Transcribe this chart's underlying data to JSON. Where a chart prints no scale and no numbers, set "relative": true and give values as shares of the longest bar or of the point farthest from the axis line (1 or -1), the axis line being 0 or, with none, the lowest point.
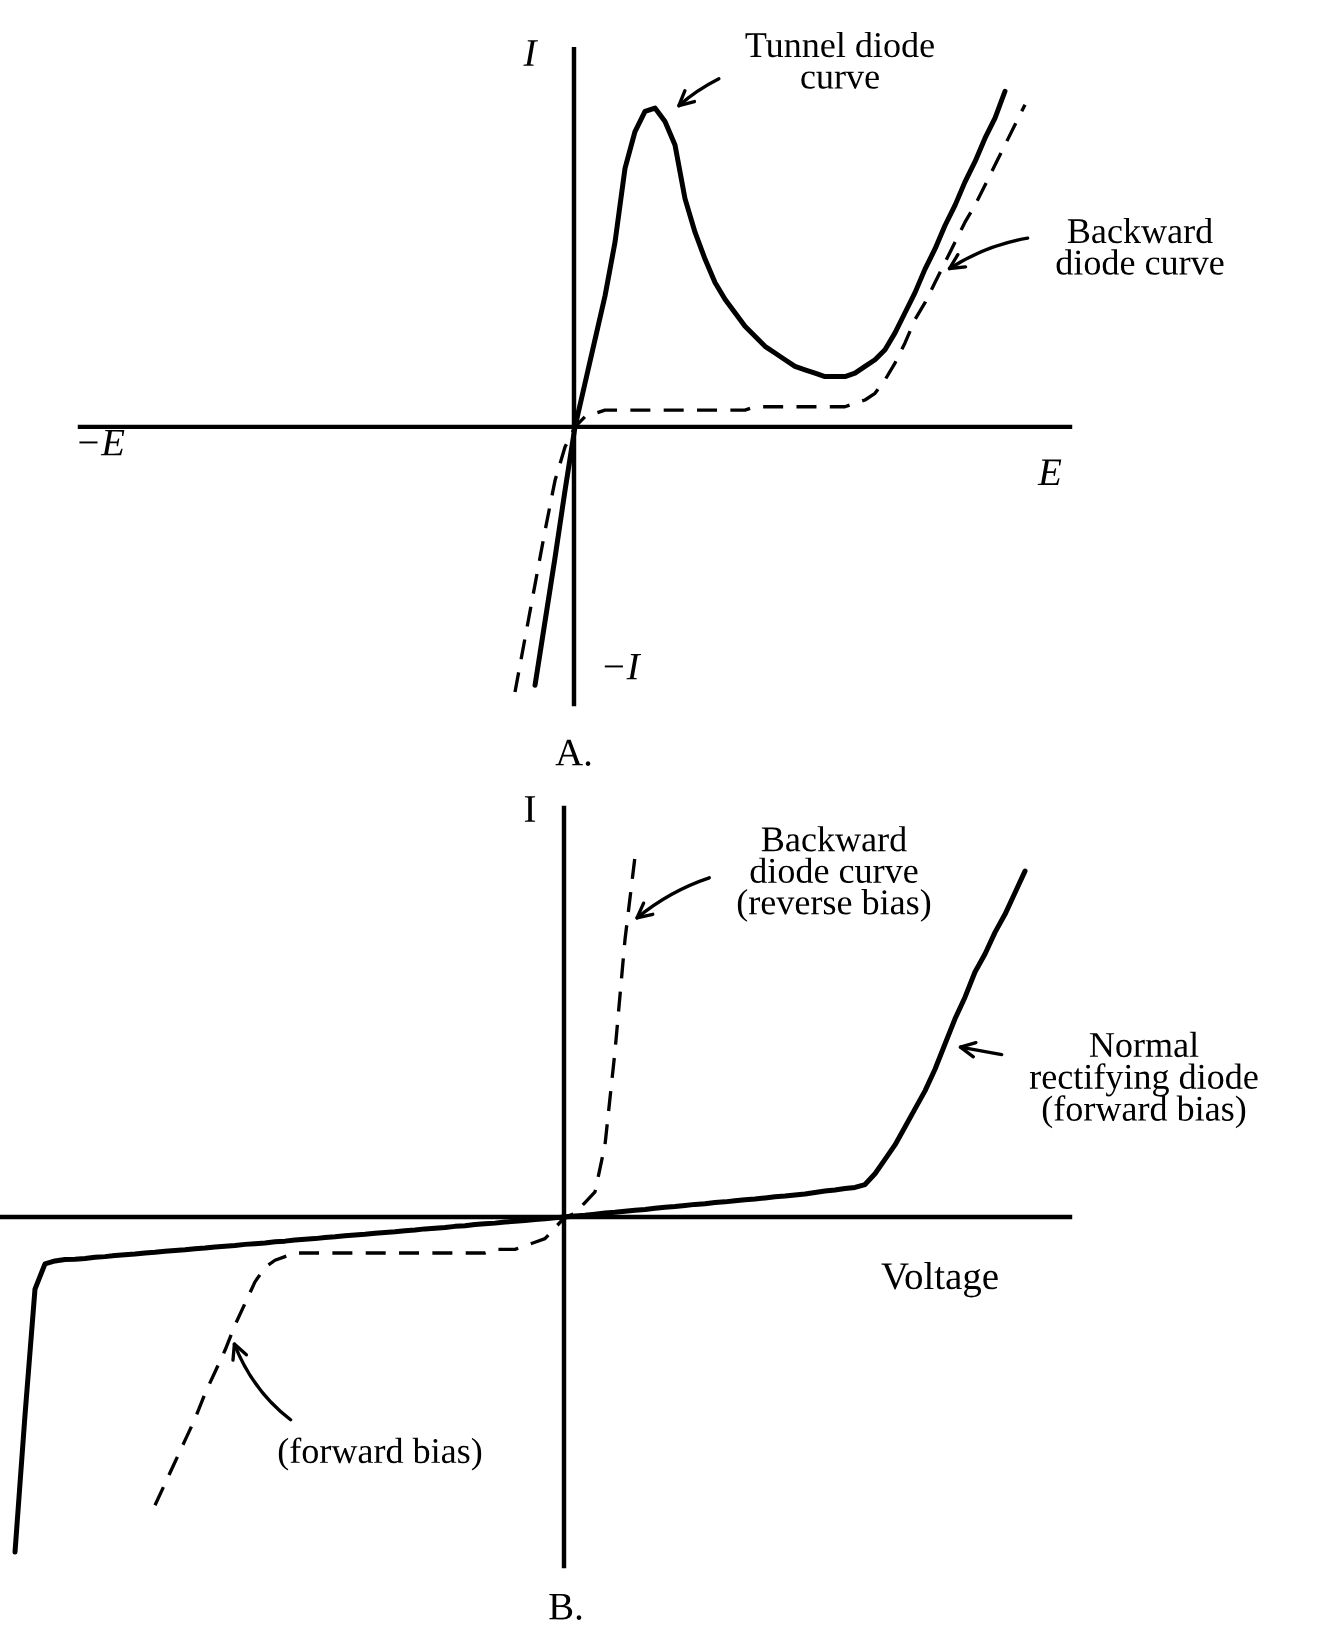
{
  "chart_data": [
    {
      "type": "line",
      "title": "A.",
      "xlabel": "E",
      "ylabel": "I",
      "relative": true,
      "categories": [
        null,
        null,
        null,
        null,
        null,
        null,
        null,
        null,
        null,
        null,
        null,
        null,
        null,
        null,
        null,
        null,
        null,
        null,
        null,
        null,
        null,
        null,
        null,
        null,
        null,
        null,
        null,
        null,
        null,
        null,
        null,
        null,
        null,
        null,
        null,
        null,
        null,
        null,
        null,
        null,
        null,
        null,
        null,
        null,
        null,
        null,
        null,
        null,
        null,
        null,
        null,
        null,
        null,
        null,
        null,
        null,
        null,
        null,
        null,
        null,
        null,
        null,
        null,
        null,
        null,
        null,
        null,
        null,
        null,
        null,
        null,
        null,
        null,
        null,
        null,
        null,
        null,
        null,
        null,
        null,
        null,
        null,
        null,
        null,
        null,
        null,
        null,
        null,
        null,
        null,
        null,
        null,
        null,
        null,
        null,
        null,
        null,
        null,
        null
      ],
      "series": [
        {
          "color": "#000000",
          "line_style": "solid",
          "values": [
            null,
            null,
            null,
            null,
            null,
            null,
            null,
            null,
            null,
            null,
            null,
            null,
            null,
            null,
            null,
            null,
            null,
            null,
            null,
            null,
            null,
            null,
            null,
            null,
            null,
            null,
            null,
            null,
            null,
            null,
            null,
            null,
            null,
            null,
            null,
            null,
            null,
            null,
            null,
            null,
            null,
            null,
            null,
            null,
            null,
            -0.77,
            -0.58,
            -0.39,
            -0.19,
            0,
            0.13,
            0.26,
            0.39,
            0.55,
            0.77,
            0.88,
            0.94,
            0.95,
            0.91,
            0.84,
            0.68,
            0.58,
            0.5,
            0.43,
            0.38,
            0.34,
            0.3,
            0.27,
            0.24,
            0.22,
            0.2,
            0.18,
            0.17,
            0.16,
            0.15,
            0.15,
            0.15,
            0.16,
            0.18,
            0.2,
            0.23,
            0.28,
            0.34,
            0.4,
            0.47,
            0.53,
            0.6,
            0.66,
            0.73,
            0.79,
            0.86,
            0.92,
            1.0,
            null,
            null,
            null,
            null,
            null,
            null
          ]
        },
        {
          "color": "#000000",
          "line_style": "dashed",
          "values": [
            null,
            null,
            null,
            null,
            null,
            null,
            null,
            null,
            null,
            null,
            null,
            null,
            null,
            null,
            null,
            null,
            null,
            null,
            null,
            null,
            null,
            null,
            null,
            null,
            null,
            null,
            null,
            null,
            null,
            null,
            null,
            null,
            null,
            null,
            null,
            null,
            null,
            null,
            null,
            null,
            null,
            null,
            null,
            -0.79,
            -0.63,
            -0.47,
            -0.31,
            -0.16,
            -0.06,
            0,
            0.03,
            0.04,
            0.05,
            0.05,
            0.05,
            0.05,
            0.05,
            0.05,
            0.05,
            0.05,
            0.05,
            0.05,
            0.05,
            0.05,
            0.05,
            0.05,
            0.05,
            0.06,
            0.06,
            0.06,
            0.06,
            0.06,
            0.06,
            0.06,
            0.06,
            0.06,
            0.06,
            0.07,
            0.08,
            0.1,
            0.14,
            0.19,
            0.25,
            0.32,
            0.37,
            0.43,
            0.49,
            0.55,
            0.61,
            0.66,
            0.72,
            0.78,
            0.84,
            0.9,
            0.96,
            null,
            null,
            null,
            null
          ]
        }
      ],
      "annotations": [
        "−E",
        "−I",
        "Tunnel diode\ncurve",
        "Backward\ndiode curve"
      ]
    },
    {
      "type": "line",
      "title": "B.",
      "xlabel": "Voltage",
      "ylabel": "I",
      "relative": true,
      "categories": [
        null,
        null,
        null,
        null,
        null,
        null,
        null,
        null,
        null,
        null,
        null,
        null,
        null,
        null,
        null,
        null,
        null,
        null,
        null,
        null,
        null,
        null,
        null,
        null,
        null,
        null,
        null,
        null,
        null,
        null,
        null,
        null,
        null,
        null,
        null,
        null,
        null,
        null,
        null,
        null,
        null,
        null,
        null,
        null,
        null,
        null,
        null,
        null,
        null,
        null,
        null,
        null,
        null,
        null,
        null,
        null,
        null,
        null,
        null,
        null,
        null,
        null,
        null,
        null,
        null,
        null,
        null,
        null,
        null,
        null,
        null,
        null,
        null,
        null,
        null,
        null,
        null,
        null,
        null,
        null,
        null,
        null,
        null,
        null,
        null,
        null,
        null,
        null,
        null,
        null,
        null,
        null,
        null,
        null,
        null,
        null,
        null,
        null,
        null,
        null,
        null,
        null,
        null,
        null,
        null,
        null,
        null
      ],
      "series": [
        {
          "color": "#000000",
          "line_style": "solid",
          "values": [
            null,
            -0.93,
            -0.55,
            -0.2,
            -0.13,
            -0.122,
            -0.118,
            -0.117,
            -0.115,
            -0.112,
            -0.11,
            -0.107,
            -0.105,
            -0.103,
            -0.1,
            -0.098,
            -0.095,
            -0.093,
            -0.091,
            -0.088,
            -0.086,
            -0.083,
            -0.081,
            -0.079,
            -0.076,
            -0.074,
            -0.072,
            -0.069,
            -0.067,
            -0.064,
            -0.062,
            -0.06,
            -0.057,
            -0.055,
            -0.052,
            -0.05,
            -0.048,
            -0.045,
            -0.043,
            -0.041,
            -0.038,
            -0.036,
            -0.033,
            -0.031,
            -0.029,
            -0.026,
            -0.024,
            -0.021,
            -0.019,
            -0.017,
            -0.014,
            -0.012,
            -0.01,
            -0.007,
            -0.005,
            -0.002,
            0,
            0.003,
            0.005,
            0.008,
            0.011,
            0.013,
            0.016,
            0.019,
            0.021,
            0.024,
            0.027,
            0.029,
            0.032,
            0.035,
            0.037,
            0.04,
            0.042,
            0.045,
            0.048,
            0.05,
            0.053,
            0.056,
            0.058,
            0.061,
            0.064,
            0.068,
            0.072,
            0.075,
            0.079,
            0.082,
            0.09,
            0.12,
            0.16,
            0.2,
            0.25,
            0.3,
            0.35,
            0.41,
            0.48,
            0.55,
            0.61,
            0.68,
            0.73,
            0.79,
            0.84,
            0.9,
            0.96,
            null,
            null,
            null,
            null
          ]
        },
        {
          "color": "#000000",
          "line_style": "dashed",
          "values": [
            null,
            null,
            null,
            null,
            null,
            null,
            null,
            null,
            null,
            null,
            null,
            null,
            null,
            null,
            null,
            -0.8,
            -0.74,
            -0.68,
            -0.62,
            -0.56,
            -0.49,
            -0.43,
            -0.37,
            -0.3,
            -0.24,
            -0.18,
            -0.14,
            -0.12,
            -0.11,
            -0.1,
            -0.1,
            -0.1,
            -0.1,
            -0.1,
            -0.1,
            -0.1,
            -0.1,
            -0.1,
            -0.1,
            -0.1,
            -0.1,
            -0.1,
            -0.1,
            -0.1,
            -0.1,
            -0.1,
            -0.1,
            -0.1,
            -0.1,
            -0.09,
            -0.09,
            -0.09,
            -0.08,
            -0.07,
            -0.06,
            -0.03,
            0,
            0.01,
            0.04,
            0.07,
            0.2,
            0.46,
            0.77,
            1.0,
            null,
            null,
            null,
            null,
            null,
            null,
            null,
            null,
            null,
            null,
            null,
            null,
            null,
            null,
            null,
            null,
            null,
            null,
            null,
            null,
            null,
            null,
            null,
            null,
            null,
            null,
            null,
            null,
            null,
            null,
            null,
            null,
            null,
            null,
            null,
            null,
            null,
            null,
            null,
            null,
            null,
            null,
            null
          ]
        }
      ],
      "annotations": [
        "Backward\ndiode curve\n(reverse bias)",
        "Normal\nrectifying diode\n(forward bias)",
        "(forward bias)"
      ]
    }
  ]
}
